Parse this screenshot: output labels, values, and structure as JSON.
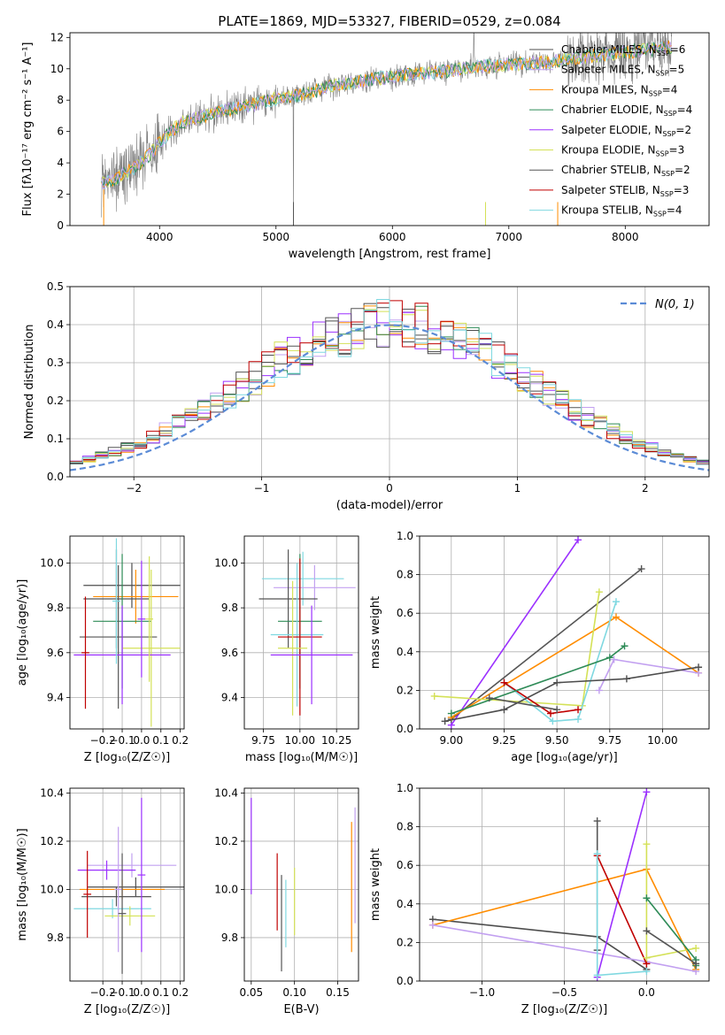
{
  "figure_title": "PLATE=1869, MJD=53327, FIBERID=0529, z=0.084",
  "colors": {
    "series": [
      "#4d4d4d",
      "#c2a0f0",
      "#ff8c00",
      "#2e8b57",
      "#9b30ff",
      "#d4e157",
      "#555555",
      "#c00000",
      "#7fd8e0"
    ]
  },
  "chart_data": [
    {
      "id": "spectrum",
      "type": "line",
      "title": "PLATE=1869, MJD=53327, FIBERID=0529, z=0.084",
      "xlabel": "wavelength [Angstrom, rest frame]",
      "ylabel": "Flux [fλ10⁻¹⁷ erg cm⁻² s⁻¹ A⁻¹]",
      "xlim": [
        3230,
        8720
      ],
      "ylim": [
        0,
        12.3
      ],
      "xticks": [
        4000,
        5000,
        6000,
        7000,
        8000
      ],
      "yticks": [
        0,
        2,
        4,
        6,
        8,
        10,
        12
      ],
      "grid": false,
      "legend_position": "top-right",
      "continuum": {
        "x": [
          3500,
          3600,
          3700,
          3800,
          3900,
          4000,
          4100,
          4200,
          4400,
          4600,
          4800,
          5000,
          5200,
          5500,
          5800,
          6100,
          6400,
          6700,
          7000,
          7300,
          7600,
          7900,
          8200,
          8400
        ],
        "y": [
          2.7,
          2.9,
          3.3,
          3.8,
          4.4,
          5.3,
          6.0,
          6.6,
          7.0,
          7.4,
          7.7,
          8.1,
          8.3,
          8.9,
          9.3,
          9.6,
          9.8,
          10.1,
          10.3,
          10.4,
          10.7,
          11.0,
          11.2,
          11.4
        ]
      },
      "legend": [
        {
          "text": "Chabrier MILES, N",
          "sub": "SSP",
          "rest": "=6"
        },
        {
          "text": "Salpeter MILES, N",
          "sub": "SSP",
          "rest": "=5"
        },
        {
          "text": "Kroupa MILES, N",
          "sub": "SSP",
          "rest": "=4"
        },
        {
          "text": "Chabrier ELODIE, N",
          "sub": "SSP",
          "rest": "=4"
        },
        {
          "text": "Salpeter ELODIE, N",
          "sub": "SSP",
          "rest": "=2"
        },
        {
          "text": "Kroupa ELODIE, N",
          "sub": "SSP",
          "rest": "=3"
        },
        {
          "text": "Chabrier STELIB, N",
          "sub": "SSP",
          "rest": "=2"
        },
        {
          "text": "Salpeter STELIB, N",
          "sub": "SSP",
          "rest": "=3"
        },
        {
          "text": "Kroupa STELIB, N",
          "sub": "SSP",
          "rest": "=4"
        }
      ]
    },
    {
      "id": "residuals",
      "type": "line",
      "xlabel": "(data-model)/error",
      "ylabel": "Normed distribution",
      "xlim": [
        -2.5,
        2.5
      ],
      "ylim": [
        0,
        0.5
      ],
      "xticks": [
        -2,
        -1,
        0,
        1,
        2
      ],
      "yticks": [
        0.0,
        0.1,
        0.2,
        0.3,
        0.4,
        0.5
      ],
      "grid": true,
      "legend_position": "top-right",
      "legend": "N(0, 1)"
    },
    {
      "id": "age_vs_Z",
      "type": "scatter",
      "xlabel": "Z [log₁₀(Z/Z☉)]",
      "ylabel": "age  [log₁₀(age/yr)]",
      "xlim": [
        -0.37,
        0.22
      ],
      "ylim": [
        9.26,
        10.12
      ],
      "xticks": [
        -0.2,
        -0.1,
        0.0,
        0.1,
        0.2
      ],
      "yticks": [
        9.4,
        9.6,
        9.8,
        10.0
      ],
      "grid": true,
      "points": [
        {
          "x": -0.05,
          "y": 9.9,
          "xerr": 0.25,
          "yerr": 0.1,
          "c": 0
        },
        {
          "x": -0.03,
          "y": 9.85,
          "xerr": 0.22,
          "yerr": 0.12,
          "c": 2
        },
        {
          "x": -0.13,
          "y": 9.84,
          "xerr": 0.17,
          "yerr": 0.22,
          "c": 6
        },
        {
          "x": -0.1,
          "y": 9.74,
          "xerr": 0.15,
          "yerr": 0.3,
          "c": 3
        },
        {
          "x": -0.12,
          "y": 9.67,
          "xerr": 0.2,
          "yerr": 0.32,
          "c": 6
        },
        {
          "x": 0.05,
          "y": 9.62,
          "xerr": 0.15,
          "yerr": 0.35,
          "c": 5
        },
        {
          "x": -0.1,
          "y": 9.59,
          "xerr": 0.25,
          "yerr": 0.22,
          "c": 4
        },
        {
          "x": -0.29,
          "y": 9.6,
          "xerr": 0.02,
          "yerr": 0.25,
          "c": 7
        },
        {
          "x": 0.0,
          "y": 9.75,
          "xerr": 0.02,
          "yerr": 0.26,
          "c": 4
        },
        {
          "x": -0.13,
          "y": 9.83,
          "xerr": 0.02,
          "yerr": 0.28,
          "c": 8
        },
        {
          "x": 0.04,
          "y": 9.75,
          "xerr": 0.02,
          "yerr": 0.28,
          "c": 5
        }
      ]
    },
    {
      "id": "age_vs_mass",
      "type": "scatter",
      "xlabel": "mass [log₁₀(M/M☉)]",
      "ylabel": "",
      "xlim": [
        9.62,
        10.4
      ],
      "ylim": [
        9.26,
        10.12
      ],
      "xticks": [
        9.75,
        10.0,
        10.25
      ],
      "yticks": [
        9.4,
        9.6,
        9.8,
        10.0
      ],
      "grid": true,
      "points": [
        {
          "x": 10.02,
          "y": 9.93,
          "xerr": 0.28,
          "yerr": 0.12,
          "c": 8
        },
        {
          "x": 10.1,
          "y": 9.89,
          "xerr": 0.28,
          "yerr": 0.1,
          "c": 1
        },
        {
          "x": 9.92,
          "y": 9.84,
          "xerr": 0.2,
          "yerr": 0.22,
          "c": 6
        },
        {
          "x": 10.0,
          "y": 9.74,
          "xerr": 0.15,
          "yerr": 0.3,
          "c": 3
        },
        {
          "x": 9.98,
          "y": 9.68,
          "xerr": 0.18,
          "yerr": 0.32,
          "c": 8
        },
        {
          "x": 10.0,
          "y": 9.67,
          "xerr": 0.15,
          "yerr": 0.35,
          "c": 7
        },
        {
          "x": 9.95,
          "y": 9.62,
          "xerr": 0.1,
          "yerr": 0.3,
          "c": 5
        },
        {
          "x": 10.08,
          "y": 9.59,
          "xerr": 0.28,
          "yerr": 0.22,
          "c": 4
        }
      ]
    },
    {
      "id": "weight_vs_age",
      "type": "line",
      "xlabel": "age  [log₁₀(age/yr)]",
      "ylabel": "mass weight",
      "xlim": [
        8.85,
        10.22
      ],
      "ylim": [
        0,
        1.0
      ],
      "xticks": [
        9.0,
        9.25,
        9.5,
        9.75,
        10.0
      ],
      "yticks": [
        0.0,
        0.2,
        0.4,
        0.6,
        0.8,
        1.0
      ],
      "grid": true,
      "series": [
        {
          "c": 4,
          "x": [
            9.0,
            9.6
          ],
          "y": [
            0.02,
            0.98
          ]
        },
        {
          "c": 6,
          "x": [
            9.0,
            9.9
          ],
          "y": [
            0.05,
            0.83
          ]
        },
        {
          "c": 2,
          "x": [
            9.0,
            9.78,
            10.17
          ],
          "y": [
            0.06,
            0.58,
            0.29
          ]
        },
        {
          "c": 5,
          "x": [
            8.92,
            9.62,
            9.7
          ],
          "y": [
            0.17,
            0.12,
            0.71
          ]
        },
        {
          "c": 8,
          "x": [
            9.25,
            9.48,
            9.6,
            9.78
          ],
          "y": [
            0.24,
            0.04,
            0.05,
            0.66
          ]
        },
        {
          "c": 7,
          "x": [
            9.25,
            9.47,
            9.6
          ],
          "y": [
            0.24,
            0.08,
            0.1
          ]
        },
        {
          "c": 3,
          "x": [
            9.0,
            9.75,
            9.82
          ],
          "y": [
            0.08,
            0.37,
            0.43
          ]
        },
        {
          "c": 1,
          "x": [
            9.7,
            9.77,
            10.17
          ],
          "y": [
            0.2,
            0.36,
            0.29
          ]
        },
        {
          "c": 0,
          "x": [
            8.97,
            9.25,
            9.5,
            9.83,
            10.17
          ],
          "y": [
            0.04,
            0.1,
            0.24,
            0.26,
            0.32
          ]
        },
        {
          "c": 6,
          "x": [
            9.18,
            9.5
          ],
          "y": [
            0.16,
            0.1
          ]
        }
      ]
    },
    {
      "id": "mass_vs_Z",
      "type": "scatter",
      "xlabel": "Z [log₁₀(Z/Z☉)]",
      "ylabel": "mass [log₁₀(M/M☉)]",
      "xlim": [
        -0.37,
        0.22
      ],
      "ylim": [
        9.62,
        10.42
      ],
      "xticks": [
        -0.2,
        -0.1,
        0.0,
        0.1,
        0.2
      ],
      "yticks": [
        9.8,
        10.0,
        10.2,
        10.4
      ],
      "grid": true,
      "points": [
        {
          "x": -0.05,
          "y": 10.1,
          "xerr": 0.23,
          "yerr": 0.05,
          "c": 1
        },
        {
          "x": -0.18,
          "y": 10.08,
          "xerr": 0.15,
          "yerr": 0.04,
          "c": 4
        },
        {
          "x": -0.03,
          "y": 10.01,
          "xerr": 0.25,
          "yerr": 0.04,
          "c": 0
        },
        {
          "x": -0.1,
          "y": 10.0,
          "xerr": 0.22,
          "yerr": 0.04,
          "c": 2
        },
        {
          "x": -0.13,
          "y": 9.97,
          "xerr": 0.18,
          "yerr": 0.04,
          "c": 6
        },
        {
          "x": -0.15,
          "y": 9.92,
          "xerr": 0.2,
          "yerr": 0.04,
          "c": 8
        },
        {
          "x": -0.06,
          "y": 9.89,
          "xerr": 0.13,
          "yerr": 0.04,
          "c": 5
        },
        {
          "x": -0.28,
          "y": 9.98,
          "xerr": 0.02,
          "yerr": 0.18,
          "c": 7
        },
        {
          "x": -0.12,
          "y": 10.0,
          "xerr": 0.02,
          "yerr": 0.26,
          "c": 1
        },
        {
          "x": 0.0,
          "y": 10.06,
          "xerr": 0.02,
          "yerr": 0.32,
          "c": 4
        },
        {
          "x": -0.1,
          "y": 9.9,
          "xerr": 0.02,
          "yerr": 0.25,
          "c": 6
        }
      ]
    },
    {
      "id": "mass_vs_EBV",
      "type": "scatter",
      "xlabel": "E(B-V)",
      "ylabel": "",
      "xlim": [
        0.042,
        0.174
      ],
      "ylim": [
        9.62,
        10.42
      ],
      "xticks": [
        0.05,
        0.1,
        0.15
      ],
      "yticks": [
        9.8,
        10.0,
        10.2,
        10.4
      ],
      "grid": true,
      "points": [
        {
          "x": 0.05,
          "y": 10.18,
          "yerr": 0.2,
          "c": 4
        },
        {
          "x": 0.08,
          "y": 9.99,
          "yerr": 0.16,
          "c": 7
        },
        {
          "x": 0.085,
          "y": 9.86,
          "yerr": 0.2,
          "c": 6
        },
        {
          "x": 0.09,
          "y": 9.9,
          "yerr": 0.14,
          "c": 8
        },
        {
          "x": 0.1,
          "y": 9.95,
          "yerr": 0.14,
          "c": 5
        },
        {
          "x": 0.166,
          "y": 10.01,
          "yerr": 0.27,
          "c": 2
        },
        {
          "x": 0.17,
          "y": 10.1,
          "yerr": 0.24,
          "c": 1
        }
      ]
    },
    {
      "id": "weight_vs_Z",
      "type": "line",
      "xlabel": "Z [log₁₀(Z/Z☉)]",
      "ylabel": "mass weight",
      "xlim": [
        -1.38,
        0.38
      ],
      "ylim": [
        0,
        1.0
      ],
      "xticks": [
        -1.0,
        -0.5,
        0.0
      ],
      "yticks": [
        0.0,
        0.2,
        0.4,
        0.6,
        0.8,
        1.0
      ],
      "grid": true,
      "series": [
        {
          "c": 0,
          "x": [
            -1.3,
            -0.3,
            0.0
          ],
          "y": [
            0.32,
            0.23,
            0.06
          ]
        },
        {
          "c": 2,
          "x": [
            -1.3,
            0.0,
            0.3
          ],
          "y": [
            0.29,
            0.58,
            0.06
          ]
        },
        {
          "c": 1,
          "x": [
            -1.3,
            0.0,
            0.3
          ],
          "y": [
            0.29,
            0.1,
            0.05
          ]
        },
        {
          "c": 4,
          "x": [
            -0.3,
            0.0
          ],
          "y": [
            0.02,
            0.98
          ]
        },
        {
          "c": 6,
          "x": [
            -0.3,
            -0.3
          ],
          "y": [
            0.83,
            0.16
          ]
        },
        {
          "c": 7,
          "x": [
            -0.3,
            0.0
          ],
          "y": [
            0.65,
            0.09
          ]
        },
        {
          "c": 8,
          "x": [
            -0.3,
            -0.3,
            0.0
          ],
          "y": [
            0.66,
            0.03,
            0.05
          ]
        },
        {
          "c": 5,
          "x": [
            0.0,
            0.0,
            0.3
          ],
          "y": [
            0.71,
            0.12,
            0.17
          ]
        },
        {
          "c": 3,
          "x": [
            0.0,
            0.3,
            0.3
          ],
          "y": [
            0.43,
            0.11,
            0.08
          ]
        },
        {
          "c": 6,
          "x": [
            0.0,
            0.3
          ],
          "y": [
            0.26,
            0.09
          ]
        }
      ]
    }
  ]
}
